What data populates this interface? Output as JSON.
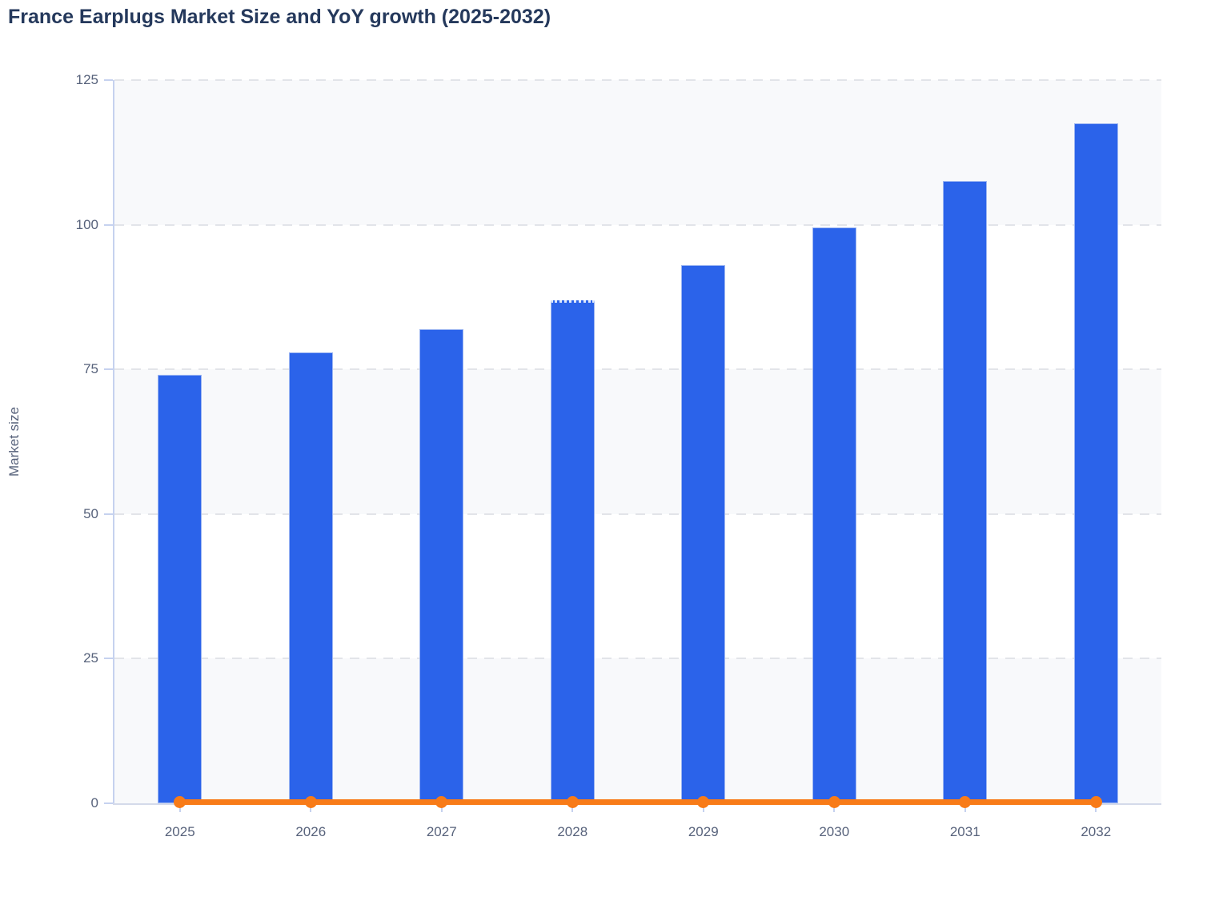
{
  "page_title": "France Earplugs Market Size and YoY growth (2025-2032)",
  "chart_data": {
    "type": "bar",
    "title": "France Earplugs Market Size and YoY growth (2025-2032)",
    "xlabel": "",
    "ylabel": "Market size",
    "categories": [
      "2025",
      "2026",
      "2027",
      "2028",
      "2029",
      "2030",
      "2031",
      "2032"
    ],
    "series": [
      {
        "name": "Market size",
        "type": "bar",
        "color": "#2b63ea",
        "values": [
          74,
          78,
          82,
          87,
          93,
          99.5,
          107.5,
          117.5
        ]
      },
      {
        "name": "YoY growth",
        "type": "line",
        "color": "#f87b18",
        "values": [
          0,
          0,
          0,
          0,
          0,
          0,
          0,
          0
        ]
      }
    ],
    "ylim": [
      0,
      125
    ],
    "yticks": [
      0,
      25,
      50,
      75,
      100,
      125
    ],
    "grid": "horizontal-dashed",
    "plot_bands": "alternating-light",
    "legend": "none",
    "dotted_top_category": "2028",
    "line_span": "first-to-last-category"
  },
  "colors": {
    "bar": "#2b63ea",
    "bar_stroke": "#9db6f2",
    "bar_dotted_cap": "#dce7fb",
    "line": "#f87b18",
    "axis": "#c6d2ef",
    "axis_bottom": "#d4daea",
    "grid": "#e2e4e9",
    "band": "#f8f9fb",
    "title_text": "#25395c",
    "tick_text": "#57627b"
  }
}
